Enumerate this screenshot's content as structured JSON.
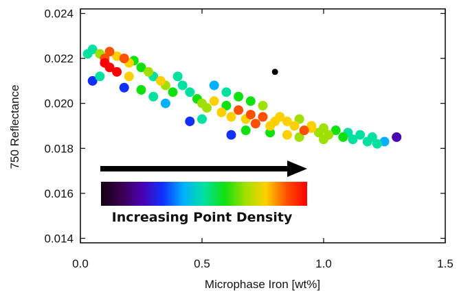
{
  "chart_data": {
    "type": "scatter",
    "title": "",
    "xlabel": "Microphase Iron [wt%]",
    "ylabel": "750 Reflectance",
    "xlim": [
      0.0,
      1.5
    ],
    "ylim": [
      0.0138,
      0.0242
    ],
    "x_ticks": [
      0.0,
      0.5,
      1.0,
      1.5
    ],
    "x_tick_labels": [
      "0.0",
      "0.5",
      "1.0",
      "1.5"
    ],
    "y_ticks": [
      0.014,
      0.016,
      0.018,
      0.02,
      0.022,
      0.024
    ],
    "y_tick_labels": [
      "0.014",
      "0.016",
      "0.018",
      "0.020",
      "0.022",
      "0.024"
    ],
    "grid": false,
    "color_encoding": "point density",
    "colormap": [
      "#140010",
      "#3a0050",
      "#4a00b0",
      "#1030ff",
      "#00b0ff",
      "#00e0a0",
      "#10e010",
      "#a0e000",
      "#ffd000",
      "#ff5000",
      "#ff0000"
    ],
    "legend_label": "Increasing Point Density",
    "legend_placement": "lower-left, inside plot",
    "series": [
      {
        "x": [
          0.03,
          0.05,
          0.08,
          0.1,
          0.12,
          0.15,
          0.18,
          0.2,
          0.22,
          0.25,
          0.28,
          0.3,
          0.33,
          0.35,
          0.38,
          0.1,
          0.12,
          0.15,
          0.08,
          0.2,
          0.05,
          0.18,
          0.25,
          0.3,
          0.35,
          0.4,
          0.42,
          0.45,
          0.48,
          0.5,
          0.52,
          0.55,
          0.58,
          0.6,
          0.62,
          0.65,
          0.68,
          0.7,
          0.72,
          0.75,
          0.78,
          0.8,
          0.55,
          0.6,
          0.65,
          0.7,
          0.75,
          0.82,
          0.85,
          0.88,
          0.9,
          0.92,
          0.95,
          0.98,
          1.0,
          1.02,
          1.05,
          1.08,
          1.1,
          1.12,
          1.15,
          1.18,
          1.2,
          1.22,
          1.25,
          1.3,
          0.45,
          0.5,
          0.62,
          0.68,
          0.78,
          0.8,
          0.85,
          0.9,
          0.95,
          1.0
        ],
        "y": [
          0.0222,
          0.0224,
          0.0222,
          0.022,
          0.0223,
          0.0221,
          0.022,
          0.0218,
          0.0219,
          0.0216,
          0.0214,
          0.0212,
          0.021,
          0.0208,
          0.0205,
          0.0218,
          0.0216,
          0.0214,
          0.0212,
          0.0212,
          0.021,
          0.0207,
          0.0206,
          0.0203,
          0.02,
          0.0212,
          0.0208,
          0.0205,
          0.0202,
          0.02,
          0.0198,
          0.0201,
          0.0196,
          0.0199,
          0.0194,
          0.0197,
          0.0193,
          0.0195,
          0.0191,
          0.0194,
          0.019,
          0.0192,
          0.0208,
          0.0205,
          0.0203,
          0.0201,
          0.0199,
          0.0194,
          0.0192,
          0.019,
          0.0193,
          0.0188,
          0.019,
          0.0187,
          0.0189,
          0.0186,
          0.0188,
          0.0185,
          0.0187,
          0.0184,
          0.0186,
          0.0183,
          0.0185,
          0.0182,
          0.0183,
          0.0185,
          0.0192,
          0.0193,
          0.0186,
          0.0188,
          0.0187,
          0.0214,
          0.0186,
          0.0185,
          0.0189,
          0.0184
        ]
      }
    ]
  }
}
